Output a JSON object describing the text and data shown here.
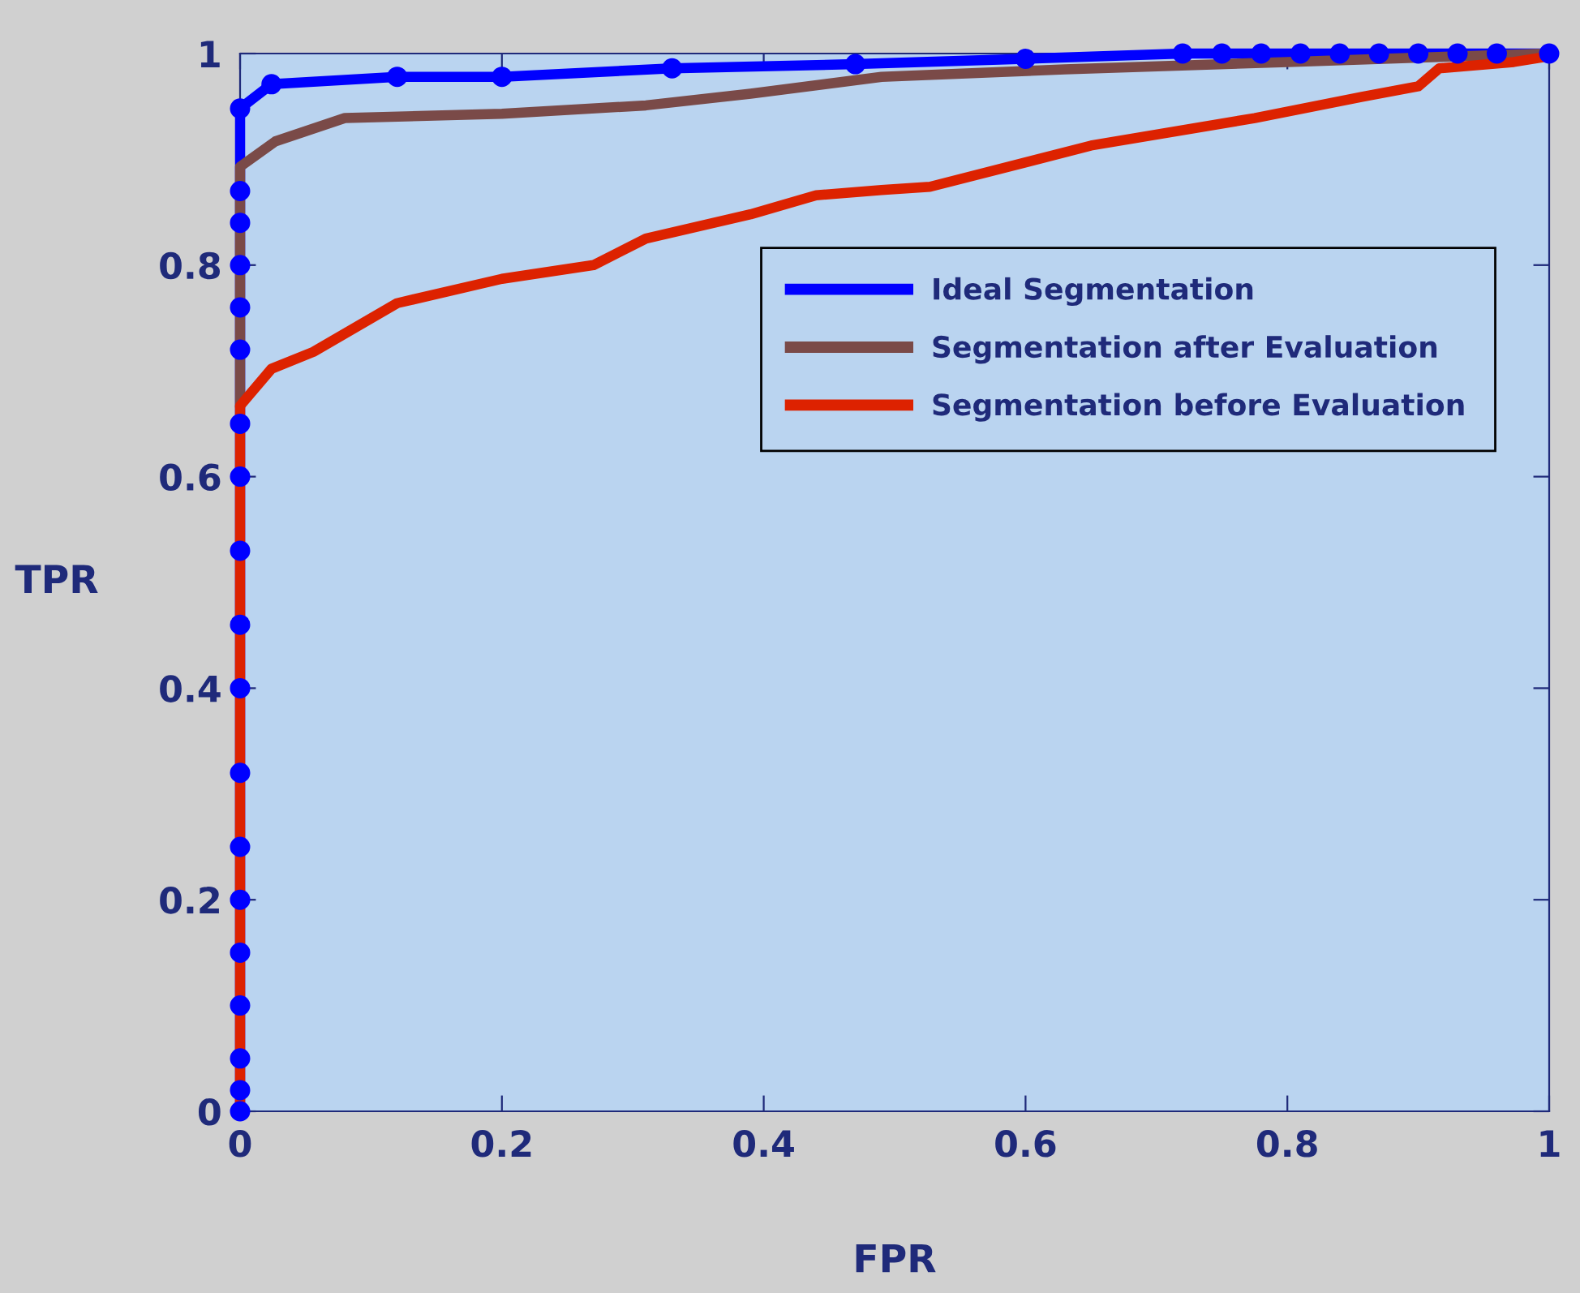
{
  "chart_data": {
    "type": "line",
    "xlabel": "FPR",
    "ylabel": "TPR",
    "xlim": [
      0,
      1
    ],
    "ylim": [
      0,
      1
    ],
    "xticks": [
      0,
      0.2,
      0.4,
      0.6,
      0.8,
      1
    ],
    "yticks": [
      0,
      0.2,
      0.4,
      0.6,
      0.8,
      1
    ],
    "grid": false,
    "legend": "top right",
    "line_style": "solid",
    "series": [
      {
        "name": "Ideal Segmentation",
        "color": "#0000ff",
        "marker": "circle",
        "x": [
          0,
          0,
          0,
          0,
          0,
          0,
          0,
          0,
          0,
          0,
          0,
          0,
          0,
          0,
          0,
          0,
          0,
          0,
          0,
          0.024,
          0.12,
          0.2,
          0.33,
          0.47,
          0.6,
          0.72,
          0.75,
          0.78,
          0.81,
          0.84,
          0.87,
          0.9,
          0.93,
          0.96,
          1
        ],
        "values": [
          0,
          0.02,
          0.05,
          0.1,
          0.15,
          0.2,
          0.25,
          0.32,
          0.4,
          0.46,
          0.53,
          0.6,
          0.65,
          0.72,
          0.76,
          0.8,
          0.84,
          0.87,
          0.948,
          0.971,
          0.978,
          0.978,
          0.986,
          0.99,
          0.995,
          1,
          1,
          1,
          1,
          1,
          1,
          1,
          1,
          1,
          1
        ]
      },
      {
        "name": "Segmentation after Evaluation",
        "color": "#7a4a48",
        "x": [
          0,
          0,
          0.027,
          0.08,
          0.2,
          0.31,
          0.39,
          0.49,
          0.63,
          0.8,
          0.92,
          1
        ],
        "values": [
          0.67,
          0.893,
          0.917,
          0.939,
          0.943,
          0.951,
          0.962,
          0.978,
          0.985,
          0.992,
          0.997,
          1
        ]
      },
      {
        "name": "Segmentation before Evaluation",
        "color": "#dd2200",
        "x": [
          0,
          0,
          0.024,
          0.056,
          0.12,
          0.2,
          0.27,
          0.31,
          0.39,
          0.44,
          0.49,
          0.527,
          0.65,
          0.775,
          0.857,
          0.9,
          0.916,
          0.973,
          0.998,
          1
        ],
        "values": [
          0,
          0.667,
          0.702,
          0.718,
          0.764,
          0.787,
          0.8,
          0.825,
          0.848,
          0.866,
          0.871,
          0.874,
          0.913,
          0.939,
          0.959,
          0.969,
          0.986,
          0.992,
          0.997,
          1
        ]
      }
    ]
  }
}
